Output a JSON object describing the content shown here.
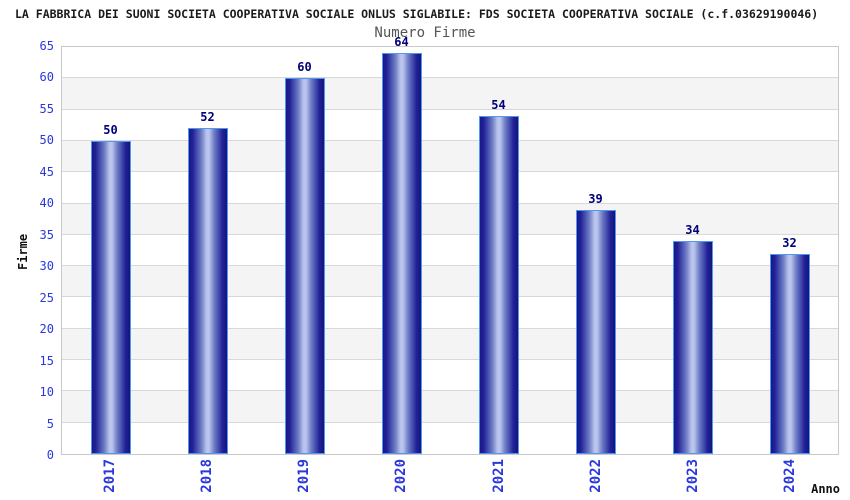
{
  "header": {
    "title": "LA FABBRICA DEI SUONI SOCIETA COOPERATIVA SOCIALE ONLUS SIGLABILE: FDS SOCIETA COOPERATIVA SOCIALE (c.f.03629190046)",
    "subtitle": "Numero Firme"
  },
  "chart_data": {
    "type": "bar",
    "title": "LA FABBRICA DEI SUONI SOCIETA COOPERATIVA SOCIALE ONLUS SIGLABILE: FDS SOCIETA COOPERATIVA SOCIALE (c.f.03629190046)",
    "subtitle": "Numero Firme",
    "categories": [
      "2017",
      "2018",
      "2019",
      "2020",
      "2021",
      "2022",
      "2023",
      "2024"
    ],
    "values": [
      50,
      52,
      60,
      64,
      54,
      39,
      34,
      32
    ],
    "xlabel": "Anno",
    "ylabel": "Firme",
    "ylim": [
      0,
      65
    ],
    "ytick_step": 5,
    "yticks": [
      0,
      5,
      10,
      15,
      20,
      25,
      30,
      35,
      40,
      45,
      50,
      55,
      60,
      65
    ],
    "bar_value_labels": true,
    "grid": "horizontal-bands",
    "legend": "none"
  },
  "colors": {
    "title_text": "#1a1a1a",
    "subtitle_text": "#555555",
    "tick_label_blue": "#2b38dd",
    "value_label_navy": "#00007a",
    "plot_border": "#c9c9c9",
    "gridline": "#d8d8d8",
    "band_gray": "#f4f4f4",
    "band_white": "#ffffff",
    "bar_border": "#4f97f0",
    "bar_edge_dark": "#18188a",
    "bar_mid": "#6f7fc6",
    "bar_light_center": "#bac4ec",
    "bar_right_dark": "#14147c"
  }
}
